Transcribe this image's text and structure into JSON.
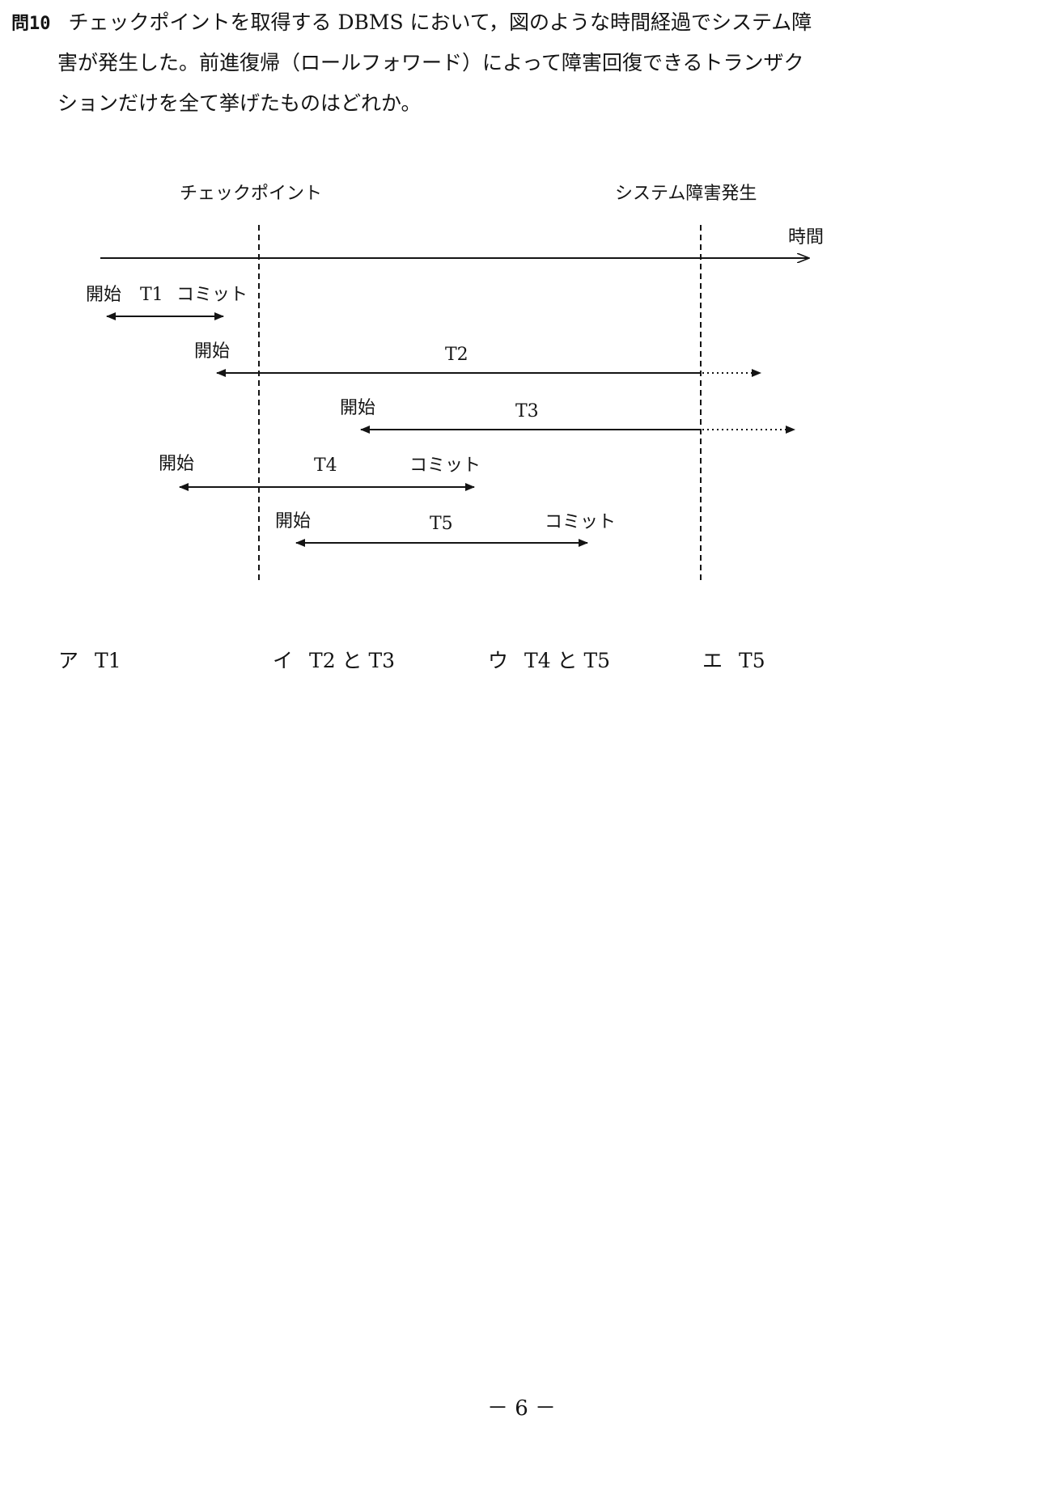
{
  "question": {
    "number": "問10",
    "lines": [
      "チェックポイントを取得する DBMS において，図のような時間経過でシステム障",
      "害が発生した。前進復帰（ロールフォワード）によって障害回復できるトランザク",
      "ションだけを全て挙げたものはどれか。"
    ]
  },
  "diagram": {
    "checkpoint_label": "チェックポイント",
    "failure_label": "システム障害発生",
    "time_label": "時間",
    "start_word": "開始",
    "commit_word": "コミット",
    "transactions": [
      {
        "id": "T1",
        "start": "開始",
        "commit": "コミット",
        "interrupted": false
      },
      {
        "id": "T2",
        "start": "開始",
        "commit": null,
        "interrupted": true
      },
      {
        "id": "T3",
        "start": "開始",
        "commit": null,
        "interrupted": true
      },
      {
        "id": "T4",
        "start": "開始",
        "commit": "コミット",
        "interrupted": false
      },
      {
        "id": "T5",
        "start": "開始",
        "commit": "コミット",
        "interrupted": false
      }
    ]
  },
  "choices": [
    {
      "mark": "ア",
      "text": "T1"
    },
    {
      "mark": "イ",
      "text": "T2 と T3"
    },
    {
      "mark": "ウ",
      "text": "T4 と T5"
    },
    {
      "mark": "エ",
      "text": "T5"
    }
  ],
  "page_number": "－ 6 －"
}
